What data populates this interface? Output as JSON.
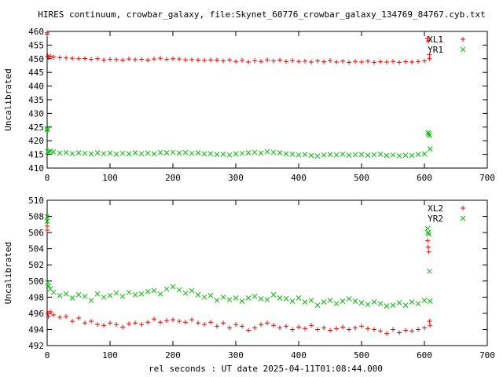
{
  "title": "HIRES continuum, crowbar_galaxy, file:Skynet_60776_crowbar_galaxy_134769_84767.cyb.txt",
  "xlabel": "rel seconds : UT date 2025-04-11T01:08:44.000",
  "colors": {
    "red": "#ff0000",
    "green": "#00c000",
    "axis": "#000000"
  },
  "chart_data": [
    {
      "type": "scatter",
      "ylabel": "Uncalibrated",
      "xlim": [
        0,
        700
      ],
      "ylim": [
        410,
        460
      ],
      "xticks": [
        0,
        100,
        200,
        300,
        400,
        500,
        600,
        700
      ],
      "yticks": [
        410,
        415,
        420,
        425,
        430,
        435,
        440,
        445,
        450,
        455,
        460
      ],
      "legend_position": "top-right",
      "series": [
        {
          "name": "XL1",
          "marker": "plus",
          "color": "#ff0000",
          "x": [
            0,
            0,
            1,
            2,
            5,
            10,
            20,
            30,
            40,
            50,
            60,
            70,
            80,
            90,
            100,
            110,
            120,
            130,
            140,
            150,
            160,
            170,
            180,
            190,
            200,
            210,
            220,
            230,
            240,
            250,
            260,
            270,
            280,
            290,
            300,
            310,
            320,
            330,
            340,
            350,
            360,
            370,
            380,
            390,
            400,
            410,
            420,
            430,
            440,
            450,
            460,
            470,
            480,
            490,
            500,
            510,
            520,
            530,
            540,
            550,
            560,
            570,
            580,
            590,
            600,
            605,
            606,
            608,
            608
          ],
          "y": [
            459.5,
            459.0,
            451.0,
            450.5,
            451.0,
            450.6,
            450.4,
            450.3,
            450.2,
            450.0,
            450.1,
            449.8,
            450.0,
            449.6,
            449.8,
            449.7,
            449.5,
            449.9,
            449.7,
            449.8,
            449.5,
            449.9,
            450.2,
            449.8,
            450.0,
            449.9,
            449.6,
            449.7,
            449.5,
            449.4,
            449.6,
            449.5,
            449.2,
            449.6,
            449.0,
            449.4,
            448.8,
            449.3,
            449.0,
            449.6,
            449.2,
            449.5,
            449.0,
            449.3,
            449.0,
            449.1,
            448.8,
            449.2,
            448.9,
            449.3,
            448.8,
            449.1,
            448.7,
            449.0,
            448.8,
            449.1,
            448.7,
            448.9,
            448.8,
            449.0,
            448.7,
            448.9,
            448.8,
            449.0,
            449.2,
            457.5,
            456.5,
            451.5,
            450.0
          ]
        },
        {
          "name": "YR1",
          "marker": "cross",
          "color": "#00c000",
          "x": [
            0,
            0,
            1,
            2,
            5,
            10,
            20,
            30,
            40,
            50,
            60,
            70,
            80,
            90,
            100,
            110,
            120,
            130,
            140,
            150,
            160,
            170,
            180,
            190,
            200,
            210,
            220,
            230,
            240,
            250,
            260,
            270,
            280,
            290,
            300,
            310,
            320,
            330,
            340,
            350,
            360,
            370,
            380,
            390,
            400,
            410,
            420,
            430,
            440,
            450,
            460,
            470,
            480,
            490,
            500,
            510,
            520,
            530,
            540,
            550,
            560,
            570,
            580,
            590,
            600,
            606,
            607,
            608,
            609
          ],
          "y": [
            424.5,
            424.0,
            416.0,
            415.8,
            416.2,
            415.9,
            415.5,
            415.7,
            415.3,
            415.6,
            415.4,
            415.2,
            415.6,
            415.3,
            415.5,
            415.1,
            415.4,
            415.2,
            415.6,
            415.3,
            415.5,
            415.2,
            415.7,
            415.6,
            415.8,
            415.5,
            415.7,
            415.4,
            415.6,
            415.2,
            415.3,
            415.0,
            415.1,
            414.8,
            415.2,
            415.4,
            415.6,
            415.8,
            415.5,
            416.0,
            415.8,
            415.6,
            415.2,
            415.1,
            414.8,
            415.0,
            414.6,
            414.4,
            414.8,
            415.0,
            414.8,
            415.1,
            414.7,
            414.9,
            415.0,
            414.7,
            414.9,
            415.1,
            414.6,
            414.8,
            414.5,
            414.7,
            414.6,
            415.0,
            415.2,
            423.0,
            422.5,
            421.8,
            417.0
          ]
        }
      ]
    },
    {
      "type": "scatter",
      "ylabel": "Uncalibrated",
      "xlim": [
        0,
        700
      ],
      "ylim": [
        492,
        510
      ],
      "xticks": [
        0,
        100,
        200,
        300,
        400,
        500,
        600,
        700
      ],
      "yticks": [
        492,
        494,
        496,
        498,
        500,
        502,
        504,
        506,
        508,
        510
      ],
      "legend_position": "top-right",
      "series": [
        {
          "name": "XL2",
          "marker": "plus",
          "color": "#ff0000",
          "x": [
            0,
            0,
            1,
            2,
            5,
            10,
            20,
            30,
            40,
            50,
            60,
            70,
            80,
            90,
            100,
            110,
            120,
            130,
            140,
            150,
            160,
            170,
            180,
            190,
            200,
            210,
            220,
            230,
            240,
            250,
            260,
            270,
            280,
            290,
            300,
            310,
            320,
            330,
            340,
            350,
            360,
            370,
            380,
            390,
            400,
            410,
            420,
            430,
            440,
            450,
            460,
            470,
            480,
            490,
            500,
            510,
            520,
            530,
            540,
            550,
            560,
            570,
            580,
            590,
            600,
            605,
            606,
            607,
            608,
            609
          ],
          "y": [
            506.8,
            506.3,
            496.0,
            495.6,
            496.2,
            495.8,
            495.5,
            495.6,
            495.0,
            495.4,
            494.8,
            495.0,
            494.6,
            494.5,
            494.8,
            494.6,
            494.3,
            494.7,
            494.8,
            494.6,
            494.9,
            495.3,
            494.9,
            495.1,
            495.2,
            495.0,
            494.9,
            495.2,
            494.8,
            494.6,
            494.9,
            494.4,
            494.8,
            494.2,
            494.6,
            494.4,
            493.9,
            494.2,
            494.6,
            494.8,
            494.5,
            494.2,
            494.4,
            494.0,
            494.3,
            494.1,
            494.5,
            494.0,
            494.2,
            493.9,
            494.1,
            494.3,
            494.0,
            494.2,
            494.4,
            494.1,
            494.0,
            493.8,
            493.5,
            494.0,
            493.6,
            493.9,
            493.8,
            494.0,
            494.2,
            505.0,
            504.2,
            503.6,
            495.0,
            494.5
          ]
        },
        {
          "name": "YR2",
          "marker": "cross",
          "color": "#00c000",
          "x": [
            0,
            0,
            1,
            2,
            5,
            10,
            20,
            30,
            40,
            50,
            60,
            70,
            80,
            90,
            100,
            110,
            120,
            130,
            140,
            150,
            160,
            170,
            180,
            190,
            200,
            210,
            220,
            230,
            240,
            250,
            260,
            270,
            280,
            290,
            300,
            310,
            320,
            330,
            340,
            350,
            360,
            370,
            380,
            390,
            400,
            410,
            420,
            430,
            440,
            450,
            460,
            470,
            480,
            490,
            500,
            510,
            520,
            530,
            540,
            550,
            560,
            570,
            580,
            590,
            600,
            605,
            606,
            607,
            608,
            609
          ],
          "y": [
            508.0,
            507.4,
            499.8,
            499.4,
            499.0,
            498.6,
            498.2,
            498.4,
            497.9,
            498.3,
            498.1,
            497.6,
            498.4,
            498.0,
            498.2,
            498.5,
            498.1,
            498.6,
            498.3,
            498.4,
            498.7,
            498.8,
            498.4,
            499.0,
            499.3,
            498.9,
            498.5,
            498.8,
            498.3,
            498.0,
            498.2,
            497.6,
            498.0,
            497.7,
            497.9,
            497.5,
            497.9,
            498.1,
            497.8,
            497.7,
            498.3,
            497.9,
            497.8,
            497.5,
            497.9,
            497.4,
            497.6,
            497.0,
            497.4,
            497.6,
            497.2,
            497.5,
            497.8,
            497.5,
            497.3,
            497.1,
            497.4,
            497.2,
            496.9,
            497.0,
            497.3,
            497.0,
            497.4,
            497.2,
            497.6,
            506.5,
            506.0,
            505.8,
            501.2,
            497.5
          ]
        }
      ]
    }
  ]
}
